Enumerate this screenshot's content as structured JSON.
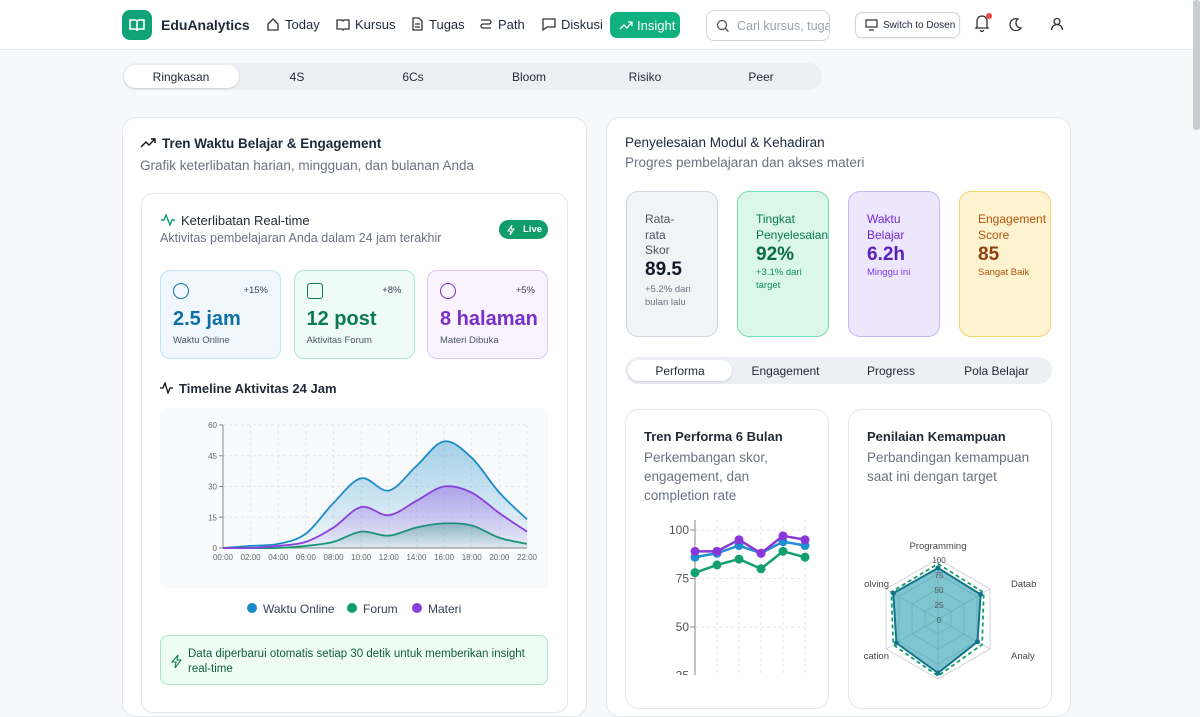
{
  "header": {
    "brand": "EduAnalytics",
    "nav": [
      "Today",
      "Kursus",
      "Tugas",
      "Path",
      "Diskusi",
      "Insight"
    ],
    "search_placeholder": "Cari kursus, tuga",
    "switch_button": "Switch to Dosen"
  },
  "tabs": [
    "Ringkasan",
    "4S",
    "6Cs",
    "Bloom",
    "Risiko",
    "Peer"
  ],
  "left_card": {
    "title": "Tren Waktu Belajar & Engagement",
    "subtitle": "Grafik keterlibatan harian, mingguan, dan bulanan Anda",
    "realtime": {
      "title": "Keterlibatan Real-time",
      "subtitle": "Aktivitas pembelajaran Anda dalam 24 jam terakhir",
      "badge": "Live",
      "stats": [
        {
          "change": "+15%",
          "value": "2.5 jam",
          "label": "Waktu Online"
        },
        {
          "change": "+8%",
          "value": "12 post",
          "label": "Aktivitas Forum"
        },
        {
          "change": "+5%",
          "value": "8 halaman",
          "label": "Materi Dibuka"
        }
      ],
      "timeline_title": "Timeline Aktivitas 24 Jam",
      "chart": {
        "type": "area",
        "categories": [
          "00:00",
          "02:00",
          "04:00",
          "06:00",
          "08:00",
          "10:00",
          "12:00",
          "14:00",
          "16:00",
          "18:00",
          "20:00",
          "22:00"
        ],
        "series": [
          {
            "name": "Waktu Online",
            "color": "#1b8bc8",
            "values": [
              0,
              1,
              2,
              7,
              22,
              34,
              28,
              40,
              52,
              44,
              27,
              14
            ]
          },
          {
            "name": "Forum",
            "color": "#0f9d6b",
            "values": [
              0,
              0,
              0,
              1,
              3,
              8,
              6,
              10,
              12,
              11,
              5,
              2
            ]
          },
          {
            "name": "Materi",
            "color": "#8b3fdc",
            "values": [
              0,
              0,
              1,
              3,
              10,
              20,
              16,
              23,
              30,
              27,
              17,
              8
            ]
          }
        ],
        "ylim": [
          0,
          60
        ],
        "yticks": [
          0,
          15,
          30,
          45,
          60
        ],
        "grid": true
      },
      "note": "Data diperbarui otomatis setiap 30 detik untuk memberikan insight real-time"
    }
  },
  "right_card": {
    "title": "Penyelesaian Modul & Kehadiran",
    "subtitle": "Progres pembelajaran dan akses materi",
    "kpis": [
      {
        "label": "Rata-rata Skor",
        "value": "89.5",
        "note": "+5.2% dari bulan lalu"
      },
      {
        "label": "Tingkat Penyelesaian",
        "value": "92%",
        "note": "+3.1% dari target"
      },
      {
        "label": "Waktu Belajar",
        "value": "6.2h",
        "note": "Minggu ini"
      },
      {
        "label": "Engagement Score",
        "value": "85",
        "note": "Sangat Baik"
      }
    ],
    "subtabs": [
      "Performa",
      "Engagement",
      "Progress",
      "Pola Belajar"
    ],
    "performance": {
      "title": "Tren Performa 6 Bulan",
      "subtitle": "Perkembangan skor, engagement, dan completion rate",
      "chart": {
        "type": "line",
        "series": [
          {
            "color": "#1e8fd2",
            "values": [
              86,
              88,
              92,
              88,
              94,
              92
            ]
          },
          {
            "color": "#12a06e",
            "values": [
              78,
              82,
              85,
              80,
              89,
              86
            ]
          },
          {
            "color": "#8b36d9",
            "values": [
              89,
              89,
              95,
              88,
              97,
              95
            ]
          }
        ],
        "ylim": [
          0,
          100
        ],
        "yticks": [
          25,
          50,
          75,
          100
        ],
        "grid": true
      }
    },
    "skills": {
      "title": "Penilaian Kemampuan",
      "subtitle": "Perbandingan kemampuan saat ini dengan target",
      "chart": {
        "type": "radar",
        "categories": [
          "Programming",
          "Datab",
          "Analy",
          null,
          "cation",
          "olving"
        ],
        "series": [
          {
            "color": "#2a9fb0",
            "values": [
              85,
              82,
              76,
              90,
              80,
              86
            ]
          },
          {
            "color": "#12a06e",
            "values": [
              92,
              88,
              85,
              95,
              86,
              90
            ]
          }
        ],
        "rlim": [
          0,
          100
        ],
        "rticks": [
          0,
          25,
          50,
          75,
          100
        ]
      }
    }
  }
}
